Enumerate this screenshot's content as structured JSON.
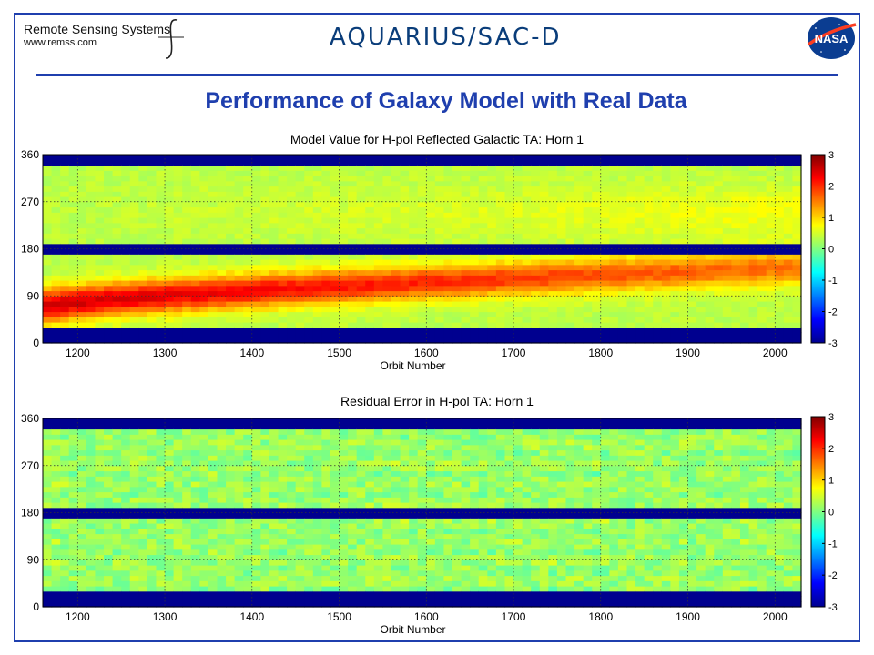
{
  "header": {
    "org_name": "Remote Sensing Systems",
    "org_url": "www.remss.com",
    "mission": "AQUARIUS/SAC-D",
    "agency": "NASA",
    "title": "Performance of Galaxy Model with Real Data"
  },
  "colors": {
    "frame": "#1f3fae",
    "title": "#1f3fae",
    "missing_data": "#00008f"
  },
  "chart_data": [
    {
      "type": "heatmap",
      "title": "Model Value for H-pol Reflected Galactic TA:  Horn 1",
      "xlabel": "Orbit Number",
      "ylabel": "",
      "xlim": [
        1160,
        2030
      ],
      "ylim": [
        0,
        360
      ],
      "x_ticks": [
        1200,
        1300,
        1400,
        1500,
        1600,
        1700,
        1800,
        1900,
        2000
      ],
      "y_ticks": [
        0,
        90,
        180,
        270,
        360
      ],
      "grid": true,
      "colorbar": {
        "min": -3,
        "max": 3,
        "ticks": [
          3,
          2,
          1,
          0,
          -1,
          -2,
          -3
        ],
        "colormap": "jet",
        "position": "right"
      },
      "missing_bands": [
        [
          0,
          25
        ],
        [
          175,
          190
        ],
        [
          340,
          360
        ]
      ],
      "features": [
        {
          "description": "hot band",
          "orbit_start": 1160,
          "orbit_end": 1600,
          "angle_start": 65,
          "angle_end": 135,
          "peak_value": 2.2
        },
        {
          "description": "weaker band",
          "orbit_start": 1600,
          "orbit_end": 2030,
          "angle_start": 130,
          "angle_end": 150,
          "peak_value": 1.4
        }
      ]
    },
    {
      "type": "heatmap",
      "title": "Residual Error in H-pol TA:  Horn 1",
      "xlabel": "Orbit Number",
      "ylabel": "",
      "xlim": [
        1160,
        2030
      ],
      "ylim": [
        0,
        360
      ],
      "x_ticks": [
        1200,
        1300,
        1400,
        1500,
        1600,
        1700,
        1800,
        1900,
        2000
      ],
      "y_ticks": [
        0,
        90,
        180,
        270,
        360
      ],
      "grid": true,
      "colorbar": {
        "min": -3,
        "max": 3,
        "ticks": [
          3,
          2,
          1,
          0,
          -1,
          -2,
          -3
        ],
        "colormap": "jet",
        "position": "right"
      },
      "missing_bands": [
        [
          0,
          25
        ],
        [
          175,
          190
        ],
        [
          340,
          360
        ]
      ],
      "typical_range": [
        -0.8,
        0.8
      ]
    }
  ]
}
